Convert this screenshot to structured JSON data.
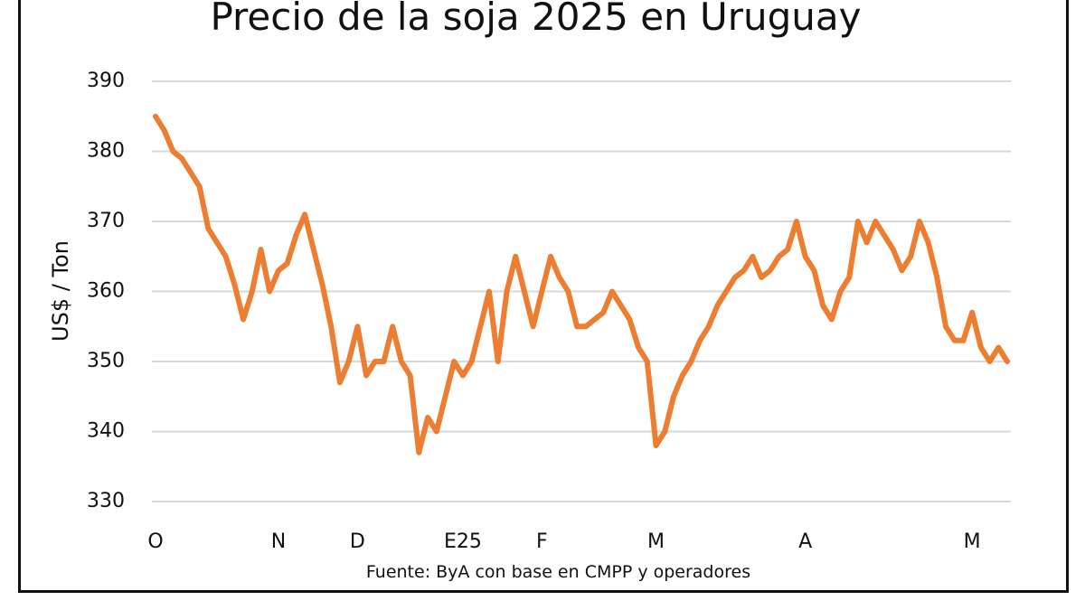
{
  "chart_data": {
    "type": "line",
    "title": "Precio de la soja 2025 en Uruguay",
    "ylabel": "US$ / Ton",
    "xlabel": "",
    "source": "Fuente: ByA con base en CMPP y operadores",
    "ylim": [
      330,
      390
    ],
    "yticks": [
      330,
      340,
      350,
      360,
      370,
      380,
      390
    ],
    "grid": true,
    "legend": "none",
    "x_ticks": [
      {
        "label": "O",
        "index": 0
      },
      {
        "label": "N",
        "index": 14
      },
      {
        "label": "D",
        "index": 23
      },
      {
        "label": "E25",
        "index": 35
      },
      {
        "label": "F",
        "index": 44
      },
      {
        "label": "M",
        "index": 57
      },
      {
        "label": "A",
        "index": 74
      },
      {
        "label": "M",
        "index": 93
      }
    ],
    "series": [
      {
        "color": "#ED7D31",
        "values": [
          385,
          383,
          380,
          379,
          377,
          375,
          369,
          367,
          365,
          361,
          356,
          360,
          366,
          360,
          363,
          364,
          368,
          371,
          366,
          361,
          355,
          347,
          350,
          355,
          348,
          350,
          350,
          355,
          350,
          348,
          337,
          342,
          340,
          345,
          350,
          348,
          350,
          355,
          360,
          350,
          360,
          365,
          360,
          355,
          360,
          365,
          362,
          360,
          355,
          355,
          356,
          357,
          360,
          358,
          356,
          352,
          350,
          338,
          340,
          345,
          348,
          350,
          353,
          355,
          358,
          360,
          362,
          363,
          365,
          362,
          363,
          365,
          366,
          370,
          365,
          363,
          358,
          356,
          360,
          362,
          370,
          367,
          370,
          368,
          366,
          363,
          365,
          370,
          367,
          362,
          355,
          353,
          353,
          357,
          352,
          350,
          352,
          350
        ]
      }
    ]
  }
}
